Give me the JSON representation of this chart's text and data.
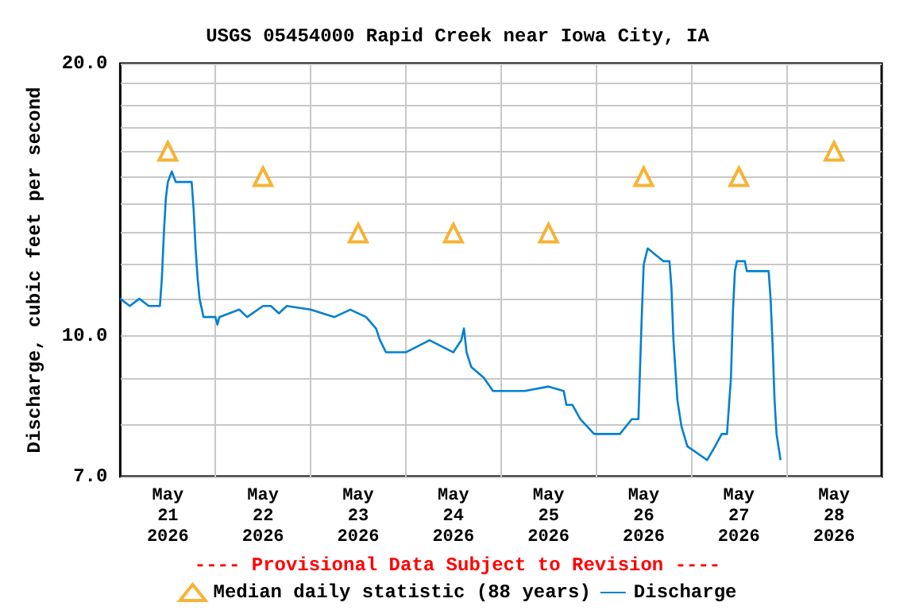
{
  "chart_data": {
    "type": "line",
    "title": "USGS 05454000 Rapid Creek near Iowa City, IA",
    "ylabel": "Discharge, cubic feet per second",
    "annotations": [
      "---- Provisional Data Subject to Revision ----"
    ],
    "xlim": [
      "2026-05-21T00:00",
      "2026-05-29T00:00"
    ],
    "xticks": [
      {
        "value": "2026-05-21T12:00",
        "label": "May\n21\n2026"
      },
      {
        "value": "2026-05-22T12:00",
        "label": "May\n22\n2026"
      },
      {
        "value": "2026-05-23T12:00",
        "label": "May\n23\n2026"
      },
      {
        "value": "2026-05-24T12:00",
        "label": "May\n24\n2026"
      },
      {
        "value": "2026-05-25T12:00",
        "label": "May\n25\n2026"
      },
      {
        "value": "2026-05-26T12:00",
        "label": "May\n26\n2026"
      },
      {
        "value": "2026-05-27T12:00",
        "label": "May\n27\n2026"
      },
      {
        "value": "2026-05-28T12:00",
        "label": "May\n28\n2026"
      },
      {
        "value": "2026-05-22T00:00",
        "label": null
      },
      {
        "value": "2026-05-23T00:00",
        "label": null
      },
      {
        "value": "2026-05-24T00:00",
        "label": null
      },
      {
        "value": "2026-05-25T00:00",
        "label": null
      },
      {
        "value": "2026-05-26T00:00",
        "label": null
      },
      {
        "value": "2026-05-27T00:00",
        "label": null
      },
      {
        "value": "2026-05-28T00:00",
        "label": null
      }
    ],
    "ylim": [
      7,
      20
    ],
    "log": true,
    "yticks": [
      {
        "value": 7,
        "label": "7.0"
      },
      {
        "value": 8,
        "label": null
      },
      {
        "value": 9,
        "label": null
      },
      {
        "value": 10,
        "label": "10.0"
      },
      {
        "value": 11,
        "label": null
      },
      {
        "value": 12,
        "label": null
      },
      {
        "value": 13,
        "label": null
      },
      {
        "value": 14,
        "label": null
      },
      {
        "value": 15,
        "label": null
      },
      {
        "value": 16,
        "label": null
      },
      {
        "value": 17,
        "label": null
      },
      {
        "value": 18,
        "label": null
      },
      {
        "value": 19,
        "label": null
      },
      {
        "value": 20,
        "label": "20.0"
      }
    ],
    "grid": true,
    "legend": "bottom",
    "series": [
      {
        "name": "Median daily statistic (88 years)",
        "type": "scatter",
        "marker": "triangle",
        "color": "#f5a000",
        "x": [
          "2026-05-21T12:00",
          "2026-05-22T12:00",
          "2026-05-23T12:00",
          "2026-05-24T12:00",
          "2026-05-25T12:00",
          "2026-05-26T12:00",
          "2026-05-27T12:00",
          "2026-05-28T12:00"
        ],
        "values": [
          16,
          15,
          13,
          13,
          13,
          15,
          15,
          16
        ]
      },
      {
        "name": "Discharge",
        "marker": "none",
        "color": "#0080d0",
        "x": [
          "2026-05-21T00:00",
          "2026-05-21T02:24",
          "2026-05-21T04:48",
          "2026-05-21T07:12",
          "2026-05-21T10:00",
          "2026-05-21T10:30",
          "2026-05-21T11:00",
          "2026-05-21T11:30",
          "2026-05-21T12:00",
          "2026-05-21T13:00",
          "2026-05-21T14:00",
          "2026-05-21T18:00",
          "2026-05-21T18:30",
          "2026-05-21T19:00",
          "2026-05-21T19:30",
          "2026-05-21T20:00",
          "2026-05-21T21:00",
          "2026-05-22T00:00",
          "2026-05-22T00:30",
          "2026-05-22T01:00",
          "2026-05-22T06:00",
          "2026-05-22T08:00",
          "2026-05-22T12:00",
          "2026-05-22T14:00",
          "2026-05-22T16:00",
          "2026-05-22T18:00",
          "2026-05-23T00:00",
          "2026-05-23T06:00",
          "2026-05-23T10:00",
          "2026-05-23T14:00",
          "2026-05-23T16:30",
          "2026-05-23T17:30",
          "2026-05-23T19:00",
          "2026-05-24T00:00",
          "2026-05-24T06:00",
          "2026-05-24T12:00",
          "2026-05-24T14:00",
          "2026-05-24T14:40",
          "2026-05-24T15:20",
          "2026-05-24T16:30",
          "2026-05-24T19:40",
          "2026-05-24T22:00",
          "2026-05-25T06:00",
          "2026-05-25T12:00",
          "2026-05-25T15:50",
          "2026-05-25T16:30",
          "2026-05-25T18:00",
          "2026-05-25T20:00",
          "2026-05-25T23:30",
          "2026-05-26T06:00",
          "2026-05-26T09:00",
          "2026-05-26T10:40",
          "2026-05-26T11:00",
          "2026-05-26T11:30",
          "2026-05-26T12:00",
          "2026-05-26T13:00",
          "2026-05-26T17:00",
          "2026-05-26T18:30",
          "2026-05-26T19:00",
          "2026-05-26T19:30",
          "2026-05-26T20:30",
          "2026-05-26T21:30",
          "2026-05-26T23:00",
          "2026-05-27T04:00",
          "2026-05-27T06:00",
          "2026-05-27T07:40",
          "2026-05-27T09:00",
          "2026-05-27T10:00",
          "2026-05-27T10:30",
          "2026-05-27T11:00",
          "2026-05-27T11:30",
          "2026-05-27T13:30",
          "2026-05-27T14:00",
          "2026-05-27T19:30",
          "2026-05-27T20:00",
          "2026-05-27T20:30",
          "2026-05-27T21:00",
          "2026-05-27T21:30",
          "2026-05-27T22:30"
        ],
        "values": [
          11.0,
          10.8,
          11.0,
          10.8,
          10.8,
          11.6,
          13.0,
          14.2,
          14.8,
          15.2,
          14.8,
          14.8,
          13.8,
          12.5,
          11.6,
          11.0,
          10.5,
          10.5,
          10.3,
          10.5,
          10.7,
          10.5,
          10.8,
          10.8,
          10.6,
          10.8,
          10.7,
          10.5,
          10.7,
          10.5,
          10.2,
          9.9,
          9.6,
          9.6,
          9.9,
          9.6,
          9.9,
          10.2,
          9.6,
          9.25,
          9.0,
          8.7,
          8.7,
          8.8,
          8.7,
          8.4,
          8.4,
          8.1,
          7.8,
          7.8,
          8.1,
          8.1,
          9.0,
          10.5,
          12.0,
          12.5,
          12.1,
          12.1,
          11.3,
          9.9,
          8.5,
          7.96,
          7.56,
          7.3,
          7.56,
          7.8,
          7.8,
          9.0,
          10.65,
          11.8,
          12.1,
          12.1,
          11.8,
          11.8,
          11.0,
          9.8,
          8.5,
          7.8,
          7.3
        ]
      }
    ]
  }
}
